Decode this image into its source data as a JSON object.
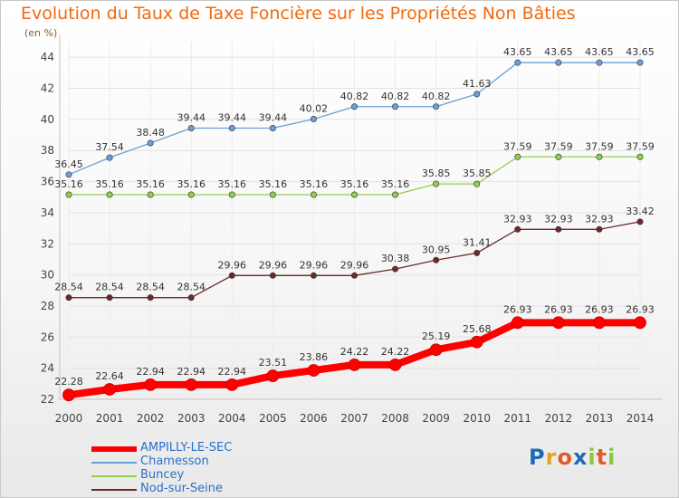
{
  "page": {
    "title": "Evolution du Taux de Taxe Foncière sur les Propriétés Non Bâties",
    "unit": "(en %)"
  },
  "brand": {
    "logo": "Proxiti"
  },
  "chart_data": {
    "type": "line",
    "title": "Evolution du Taux de Taxe Foncière sur les Propriétés Non Bâties",
    "ylabel": "(en %)",
    "ylim": [
      22,
      45
    ],
    "yticks": [
      "22",
      "24",
      "26",
      "28",
      "30",
      "32",
      "34",
      "36",
      "38",
      "40",
      "42",
      "44"
    ],
    "x": [
      "2000",
      "2001",
      "2002",
      "2003",
      "2004",
      "2005",
      "2006",
      "2007",
      "2008",
      "2009",
      "2010",
      "2011",
      "2012",
      "2013",
      "2014"
    ],
    "legend_position": "bottom-left",
    "grid": true,
    "series": [
      {
        "name": "AMPILLY-LE-SEC",
        "color": "#ff0000",
        "values": [
          22.28,
          22.64,
          22.94,
          22.94,
          22.94,
          23.51,
          23.86,
          24.22,
          24.22,
          25.19,
          25.68,
          26.93,
          26.93,
          26.93,
          26.93
        ],
        "labels": [
          "22.28",
          "22.64",
          "22.94",
          "22.94",
          "22.94",
          "23.51",
          "23.86",
          "24.22",
          "24.22",
          "25.19",
          "25.68",
          "26.93",
          "26.93",
          "26.93",
          "26.93"
        ]
      },
      {
        "name": "Chamesson",
        "color": "#6b9fd6",
        "values": [
          36.45,
          37.54,
          38.48,
          39.44,
          39.44,
          39.44,
          40.02,
          40.82,
          40.82,
          40.82,
          41.63,
          43.65,
          43.65,
          43.65,
          43.65
        ],
        "labels": [
          "36.45",
          "37.54",
          "38.48",
          "39.44",
          "39.44",
          "39.44",
          "40.02",
          "40.82",
          "40.82",
          "40.82",
          "41.63",
          "43.65",
          "43.65",
          "43.65",
          "43.65"
        ]
      },
      {
        "name": "Buncey",
        "color": "#8ed14a",
        "values": [
          35.16,
          35.16,
          35.16,
          35.16,
          35.16,
          35.16,
          35.16,
          35.16,
          35.16,
          35.85,
          35.85,
          37.59,
          37.59,
          37.59,
          37.59
        ],
        "labels": [
          "35.16",
          "35.16",
          "35.16",
          "35.16",
          "35.16",
          "35.16",
          "35.16",
          "35.16",
          "35.16",
          "35.85",
          "35.85",
          "37.59",
          "37.59",
          "37.59",
          "37.59"
        ]
      },
      {
        "name": "Nod-sur-Seine",
        "color": "#6e2a2a",
        "values": [
          28.54,
          28.54,
          28.54,
          28.54,
          29.96,
          29.96,
          29.96,
          29.96,
          30.38,
          30.95,
          31.41,
          32.93,
          32.93,
          32.93,
          33.42
        ],
        "labels": [
          "28.54",
          "28.54",
          "28.54",
          "28.54",
          "29.96",
          "29.96",
          "29.96",
          "29.96",
          "30.38",
          "30.95",
          "31.41",
          "32.93",
          "32.93",
          "32.93",
          "33.42"
        ]
      }
    ]
  }
}
